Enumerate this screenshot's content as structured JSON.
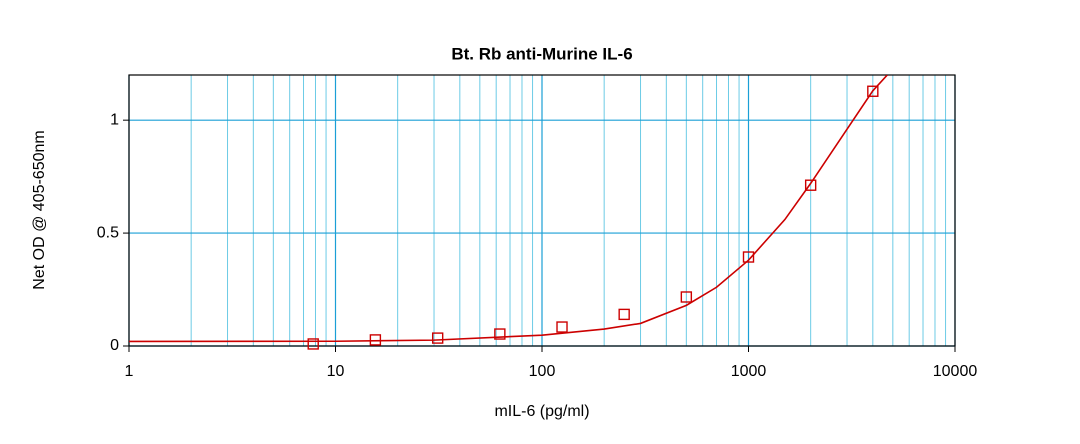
{
  "chart_data": {
    "type": "scatter",
    "title": "Bt. Rb anti-Murine IL-6",
    "xlabel": "mIL-6 (pg/ml)",
    "ylabel": "Net OD @ 405-650nm",
    "xlog": true,
    "xlim": [
      1,
      10000
    ],
    "xticks": [
      1,
      10,
      100,
      1000,
      10000
    ],
    "xminorticks": [
      2,
      3,
      4,
      5,
      6,
      7,
      8,
      9,
      20,
      30,
      40,
      50,
      60,
      70,
      80,
      90,
      200,
      300,
      400,
      500,
      600,
      700,
      800,
      900,
      2000,
      3000,
      4000,
      5000,
      6000,
      7000,
      8000,
      9000
    ],
    "ylim": [
      0,
      1.2
    ],
    "yticks": [
      0,
      0.5,
      1
    ],
    "grid": true,
    "series": [
      {
        "color": "#cc0000",
        "x": [
          7.8,
          15.6,
          31.25,
          62.5,
          125,
          250,
          500,
          1000,
          2000,
          4000
        ],
        "values": [
          0.009,
          0.027,
          0.035,
          0.053,
          0.084,
          0.14,
          0.217,
          0.394,
          0.712,
          1.128
        ]
      }
    ],
    "fit": {
      "color": "#cc0000",
      "x": [
        1,
        10,
        30,
        100,
        200,
        300,
        500,
        700,
        1000,
        1500,
        2000,
        3000,
        4000,
        4700
      ],
      "y": [
        0.02,
        0.021,
        0.026,
        0.048,
        0.075,
        0.1,
        0.18,
        0.26,
        0.38,
        0.56,
        0.72,
        0.96,
        1.13,
        1.2
      ]
    }
  }
}
